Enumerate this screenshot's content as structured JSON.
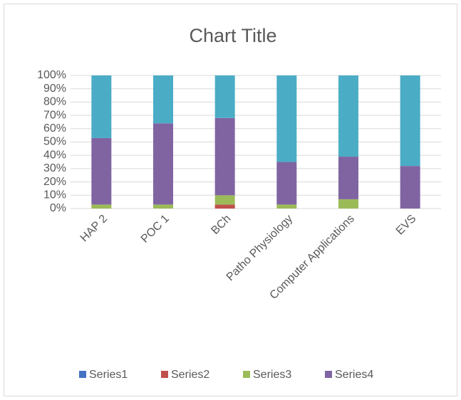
{
  "chart_data": {
    "type": "stacked_bar",
    "title": "Chart Title",
    "categories": [
      "HAP 2",
      "POC 1",
      "BCh",
      "Patho Physiology",
      "Computer Applications",
      "EVS"
    ],
    "series": [
      {
        "name": "Series1",
        "color": "#4472c4",
        "values": [
          0,
          0,
          0,
          0,
          0,
          0
        ]
      },
      {
        "name": "Series2",
        "color": "#c0504d",
        "values": [
          0,
          0,
          3,
          0,
          0,
          0
        ]
      },
      {
        "name": "Series3",
        "color": "#9bbb59",
        "values": [
          3,
          3,
          7,
          3,
          7,
          0
        ]
      },
      {
        "name": "Series4",
        "color": "#8064a2",
        "values": [
          50,
          61,
          58,
          32,
          32,
          32
        ]
      },
      {
        "color": "#4bacc6",
        "values": [
          47,
          36,
          32,
          65,
          61,
          68
        ]
      }
    ],
    "ylim": [
      0,
      100
    ],
    "yticks": [
      {
        "value": 0,
        "label": "0%"
      },
      {
        "value": 10,
        "label": "10%"
      },
      {
        "value": 20,
        "label": "20%"
      },
      {
        "value": 30,
        "label": "30%"
      },
      {
        "value": 40,
        "label": "40%"
      },
      {
        "value": 50,
        "label": "50%"
      },
      {
        "value": 60,
        "label": "60%"
      },
      {
        "value": 70,
        "label": "70%"
      },
      {
        "value": 80,
        "label": "80%"
      },
      {
        "value": 90,
        "label": "90%"
      },
      {
        "value": 100,
        "label": "100%"
      }
    ],
    "grid": true,
    "legend": "bottom"
  }
}
